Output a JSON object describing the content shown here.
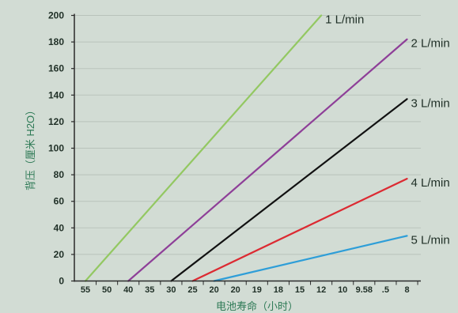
{
  "chart_data": {
    "type": "line",
    "xlabel": "电池寿命（小时）",
    "ylabel": "背压（厘米 H2O）",
    "ylim": [
      0,
      200
    ],
    "yticks": [
      0,
      20,
      40,
      60,
      80,
      100,
      120,
      140,
      160,
      180,
      200
    ],
    "xticks": [
      "55",
      "50",
      "40",
      "35",
      "30",
      "25",
      "20",
      "20",
      "19",
      "18",
      "15",
      "12",
      "10",
      "9.58",
      ".5",
      "8"
    ],
    "grid": "horizontal",
    "colors": {
      "background": "#d2dcd4",
      "grid": "#b9c3bb",
      "axis": "#2a2a2a"
    },
    "series": [
      {
        "name": "1 L/min",
        "color": "#93c862",
        "start": {
          "x": "55",
          "y": 0
        },
        "end": {
          "x": "12",
          "y": 200
        }
      },
      {
        "name": "2 L/min",
        "color": "#8e3f98",
        "start": {
          "x": "40",
          "y": 0
        },
        "end": {
          "x": "8",
          "y": 182
        }
      },
      {
        "name": "3 L/min",
        "color": "#111111",
        "start": {
          "x": "30",
          "y": 0
        },
        "end": {
          "x": "8",
          "y": 137
        }
      },
      {
        "name": "4 L/min",
        "color": "#dc2a32",
        "start": {
          "x": "25",
          "y": 0
        },
        "end": {
          "x": "8",
          "y": 77
        }
      },
      {
        "name": "5 L/min",
        "color": "#2e9ed8",
        "start": {
          "x": "20",
          "y": 0
        },
        "end": {
          "x": "8",
          "y": 34
        }
      }
    ]
  }
}
